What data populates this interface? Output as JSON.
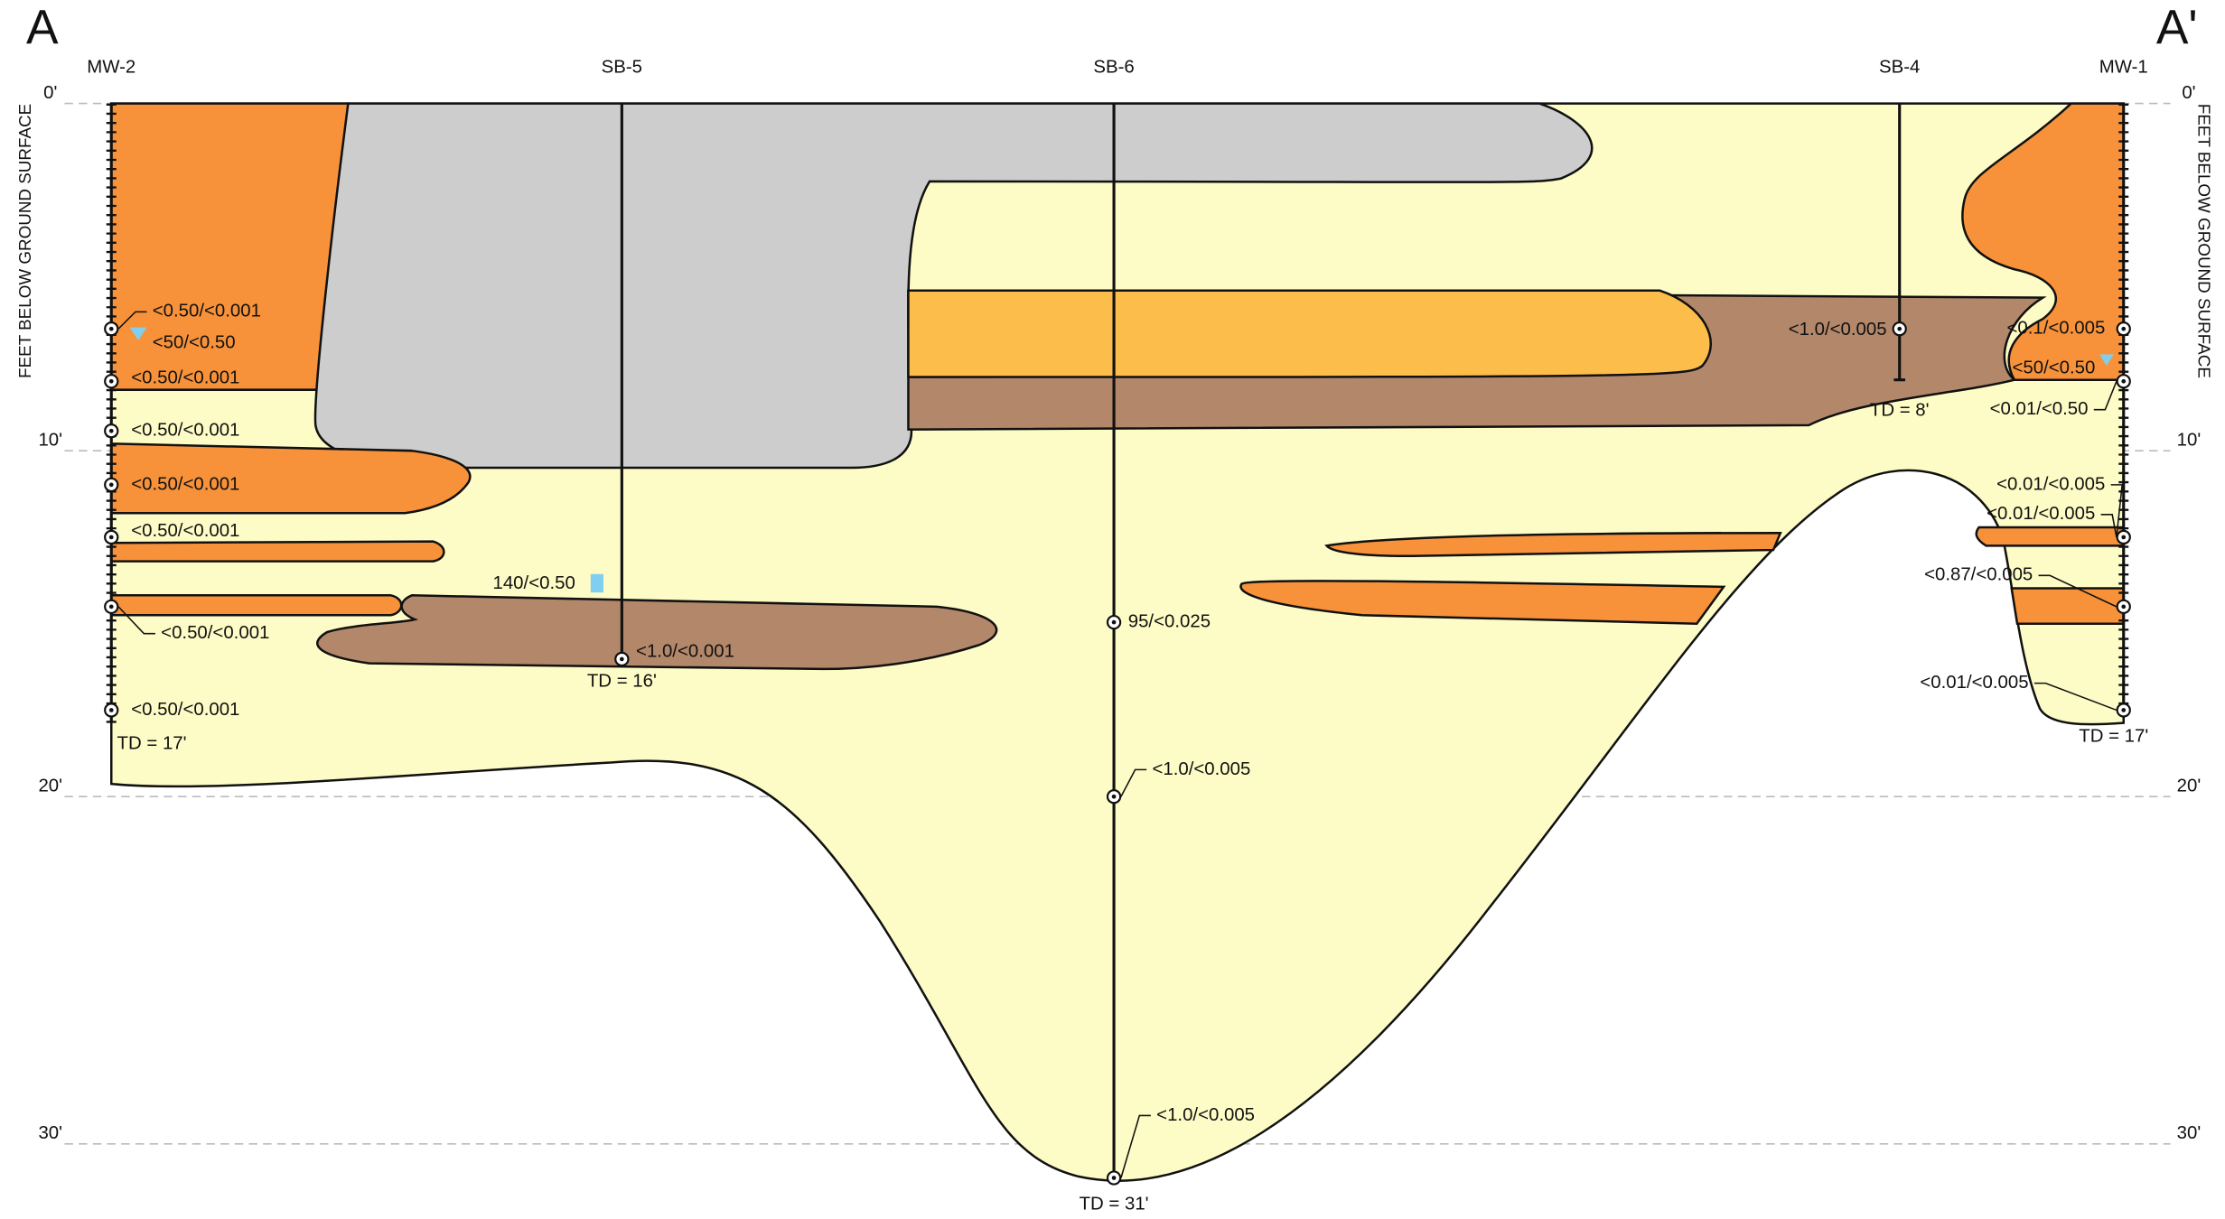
{
  "section": {
    "start": "A",
    "end": "A'"
  },
  "axis_label": "FEET BELOW GROUND SURFACE",
  "depth_labels": [
    "0'",
    "10'",
    "20'",
    "30'"
  ],
  "wells": [
    {
      "name": "MW-2",
      "td": "TD = 17'",
      "samples": [
        "<0.50/<0.001",
        "<50/<0.50",
        "<0.50/<0.001",
        "<0.50/<0.001",
        "<0.50/<0.001",
        "<0.50/<0.001",
        "<0.50/<0.001",
        "<0.50/<0.001"
      ]
    },
    {
      "name": "SB-5",
      "td": "TD = 16'",
      "samples": [
        "140/<0.50",
        "<1.0/<0.001"
      ]
    },
    {
      "name": "SB-6",
      "td": "TD = 31'",
      "samples": [
        "95/<0.025",
        "<1.0/<0.005",
        "<1.0/<0.005"
      ]
    },
    {
      "name": "SB-4",
      "td": "TD = 8'",
      "samples": [
        "<1.0/<0.005"
      ]
    },
    {
      "name": "MW-1",
      "td": "TD = 17'",
      "samples": [
        "<0.1/<0.005",
        "<50/<0.50",
        "<0.01/<0.50",
        "<0.01/<0.005",
        "<0.01/<0.005",
        "<0.87/<0.005",
        "<0.01/<0.005"
      ]
    }
  ]
}
